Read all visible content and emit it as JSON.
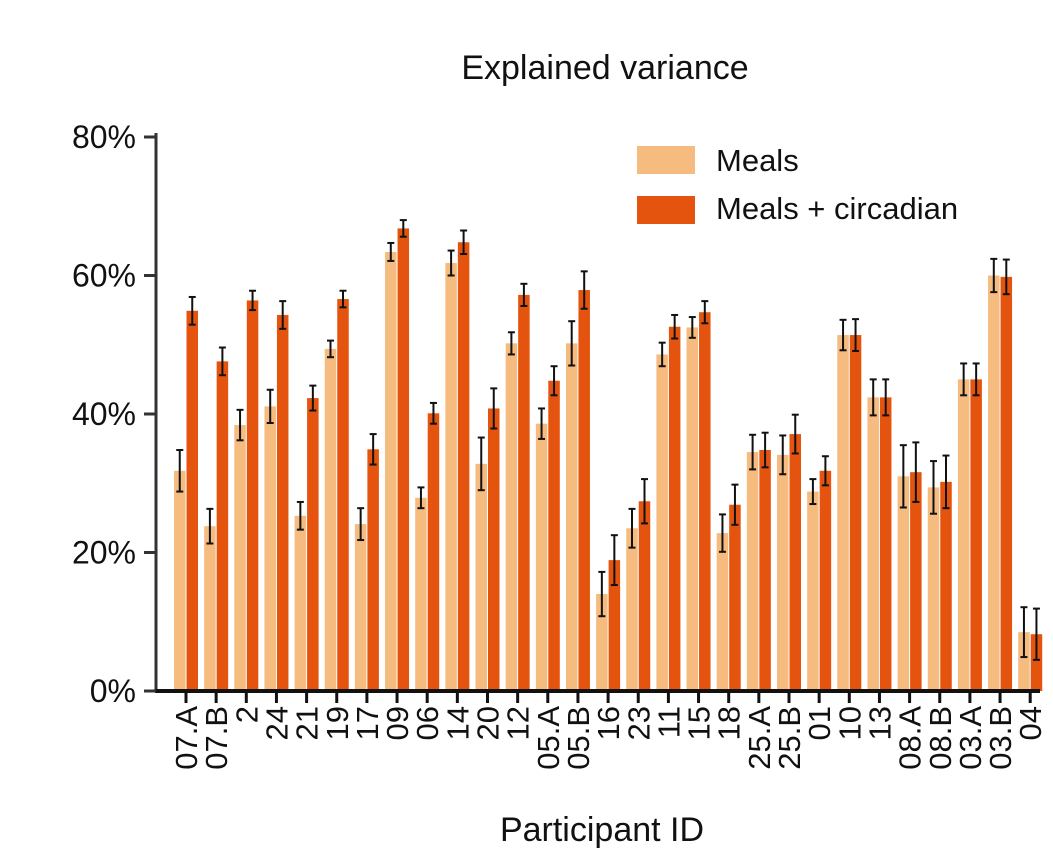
{
  "chart_data": {
    "type": "bar",
    "title": "Explained variance",
    "xlabel": "Participant ID",
    "ylabel": "",
    "ylim": [
      0,
      80
    ],
    "yticks": [
      "0%",
      "20%",
      "40%",
      "60%",
      "80%"
    ],
    "ytick_values": [
      0,
      20,
      40,
      60,
      80
    ],
    "legend_position": "top-right",
    "categories": [
      "07.A",
      "07.B",
      "2",
      "24",
      "21",
      "19",
      "17",
      "09",
      "06",
      "14",
      "20",
      "12",
      "05.A",
      "05.B",
      "16",
      "23",
      "11",
      "15",
      "18",
      "25.A",
      "25.B",
      "01",
      "10",
      "13",
      "08.A",
      "08.B",
      "03.A",
      "03.B",
      "04"
    ],
    "series": [
      {
        "name": "Meals",
        "color": "#f5bb7f",
        "values": [
          31.8,
          23.8,
          38.4,
          41.1,
          25.3,
          49.4,
          24.1,
          63.4,
          27.9,
          61.8,
          32.8,
          50.2,
          38.6,
          50.2,
          14.0,
          23.5,
          48.6,
          52.5,
          22.8,
          34.5,
          34.1,
          28.8,
          51.4,
          42.4,
          31.0,
          29.4,
          45.0,
          60.0,
          8.5
        ],
        "errors": [
          3.0,
          2.5,
          2.2,
          2.4,
          2.0,
          1.2,
          2.3,
          1.3,
          1.5,
          1.8,
          3.8,
          1.6,
          2.2,
          3.2,
          3.2,
          2.8,
          1.7,
          1.5,
          2.7,
          2.5,
          2.8,
          1.8,
          2.2,
          2.6,
          4.5,
          3.8,
          2.3,
          2.4,
          3.6
        ]
      },
      {
        "name": "Meals + circadian",
        "color": "#e4540f",
        "values": [
          54.9,
          47.6,
          56.4,
          54.3,
          42.3,
          56.6,
          34.9,
          66.8,
          40.1,
          64.8,
          40.8,
          57.2,
          44.8,
          57.9,
          18.9,
          27.4,
          52.6,
          54.7,
          26.9,
          34.8,
          37.1,
          31.8,
          51.4,
          42.4,
          31.6,
          30.2,
          45.0,
          59.8,
          8.2
        ],
        "errors": [
          2.0,
          2.0,
          1.4,
          2.0,
          1.8,
          1.2,
          2.2,
          1.2,
          1.5,
          1.7,
          2.9,
          1.6,
          2.1,
          2.7,
          3.6,
          3.2,
          1.7,
          1.6,
          2.9,
          2.5,
          2.8,
          2.1,
          2.3,
          2.6,
          4.3,
          3.8,
          2.3,
          2.5,
          3.7
        ]
      }
    ]
  }
}
